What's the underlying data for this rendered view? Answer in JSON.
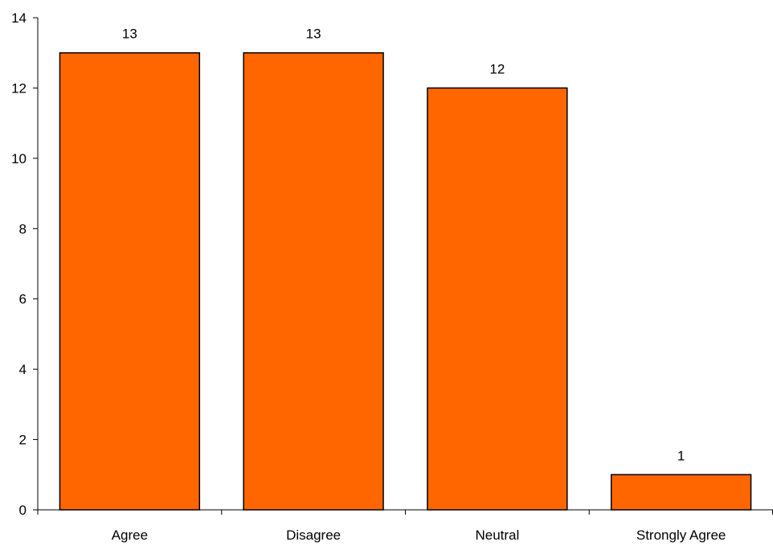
{
  "chart_data": {
    "type": "bar",
    "categories": [
      "Agree",
      "Disagree",
      "Neutral",
      "Strongly Agree"
    ],
    "values": [
      13,
      13,
      12,
      1
    ],
    "data_labels": [
      "13",
      "13",
      "12",
      "1"
    ],
    "title": "",
    "xlabel": "",
    "ylabel": "",
    "ylim": [
      0,
      14
    ],
    "yticks": [
      0,
      2,
      4,
      6,
      8,
      10,
      12,
      14
    ],
    "ytick_labels": [
      "0",
      "2",
      "4",
      "6",
      "8",
      "10",
      "12",
      "14"
    ],
    "grid": false,
    "legend": "none",
    "colors": {
      "bar_fill": "#FF6600",
      "bar_stroke": "#000000",
      "axis": "#000000"
    }
  }
}
